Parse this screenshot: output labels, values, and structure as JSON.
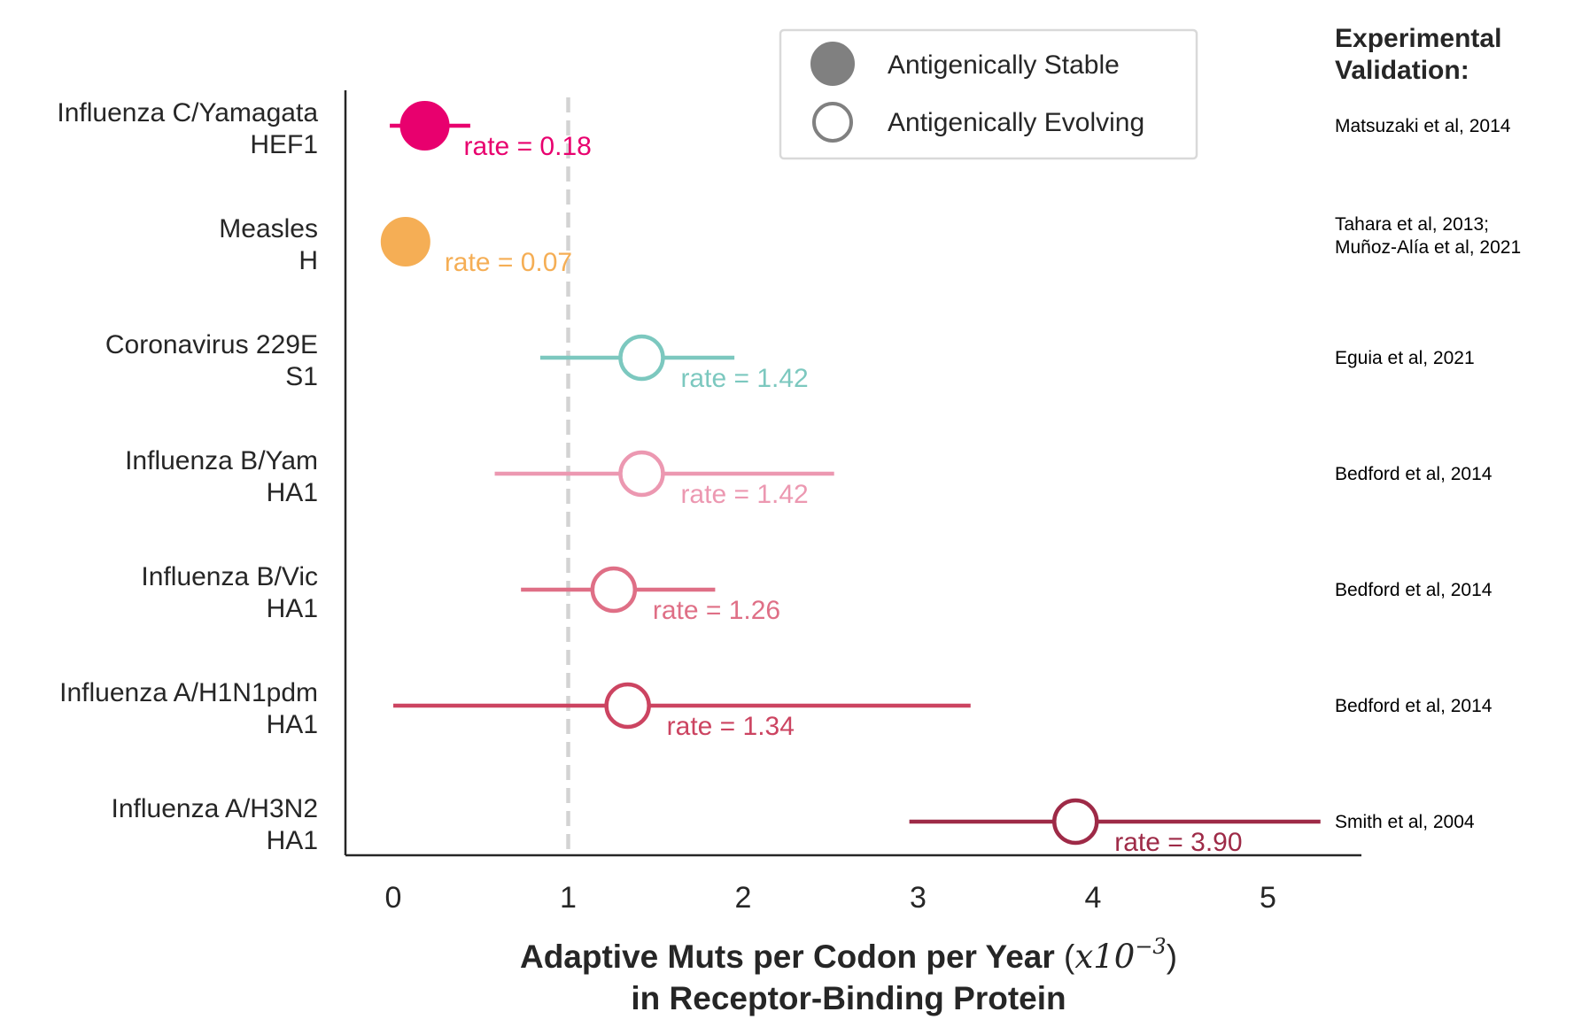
{
  "chart_data": {
    "type": "scatter",
    "subtype": "dot-and-whisker",
    "orientation": "horizontal",
    "title": "",
    "xlabel_line1": "Adaptive Muts per Codon per Year ",
    "xlabel_math_base": "x10",
    "xlabel_math_exp": "−3",
    "xlabel_line2": "in Receptor-Binding Protein",
    "xlim": [
      -0.27,
      5.55
    ],
    "xticks": [
      0,
      1,
      2,
      3,
      4,
      5
    ],
    "xtick_labels": [
      "0",
      "1",
      "2",
      "3",
      "4",
      "5"
    ],
    "reference_line": {
      "x": 1.0,
      "style": "dashed",
      "color": "#d3d3d3"
    },
    "grid": false,
    "legend": {
      "position": "top-center",
      "entries": [
        {
          "label": "Antigenically Stable",
          "marker": "filled",
          "color": "#808080"
        },
        {
          "label": "Antigenically Evolving",
          "marker": "open",
          "color": "#808080"
        }
      ]
    },
    "validation_title_line1": "Experimental",
    "validation_title_line2": "Validation:",
    "series": [
      {
        "virus": "Influenza C/Yamagata",
        "gene": "HEF1",
        "rate": 0.18,
        "low": -0.02,
        "high": 0.44,
        "rate_label": "rate = 0.18",
        "status": "stable",
        "color": "#e8006e",
        "refs": [
          "Matsuzaki et al, 2014"
        ]
      },
      {
        "virus": "Measles",
        "gene": "H",
        "rate": 0.07,
        "low": null,
        "high": null,
        "rate_label": "rate = 0.07",
        "status": "stable",
        "color": "#f5ae55",
        "refs": [
          "Tahara et al, 2013;",
          "Muñoz-Alía et al, 2021"
        ]
      },
      {
        "virus": "Coronavirus 229E",
        "gene": "S1",
        "rate": 1.42,
        "low": 0.84,
        "high": 1.95,
        "rate_label": "rate = 1.42",
        "status": "evolving",
        "color": "#7cc8bf",
        "refs": [
          "Eguia et al, 2021"
        ]
      },
      {
        "virus": "Influenza B/Yam",
        "gene": "HA1",
        "rate": 1.42,
        "low": 0.58,
        "high": 2.52,
        "rate_label": "rate = 1.42",
        "status": "evolving",
        "color": "#ec98b1",
        "refs": [
          "Bedford et al, 2014"
        ]
      },
      {
        "virus": "Influenza B/Vic",
        "gene": "HA1",
        "rate": 1.26,
        "low": 0.73,
        "high": 1.84,
        "rate_label": "rate = 1.26",
        "status": "evolving",
        "color": "#df6f86",
        "refs": [
          "Bedford et al, 2014"
        ]
      },
      {
        "virus": "Influenza A/H1N1pdm",
        "gene": "HA1",
        "rate": 1.34,
        "low": 0.0,
        "high": 3.3,
        "rate_label": "rate = 1.34",
        "status": "evolving",
        "color": "#cc4461",
        "refs": [
          "Bedford et al, 2014"
        ]
      },
      {
        "virus": "Influenza A/H3N2",
        "gene": "HA1",
        "rate": 3.9,
        "low": 2.95,
        "high": 5.3,
        "rate_label": "rate = 3.90",
        "status": "evolving",
        "color": "#9e2a47",
        "refs": [
          "Smith et al, 2004"
        ]
      }
    ]
  }
}
